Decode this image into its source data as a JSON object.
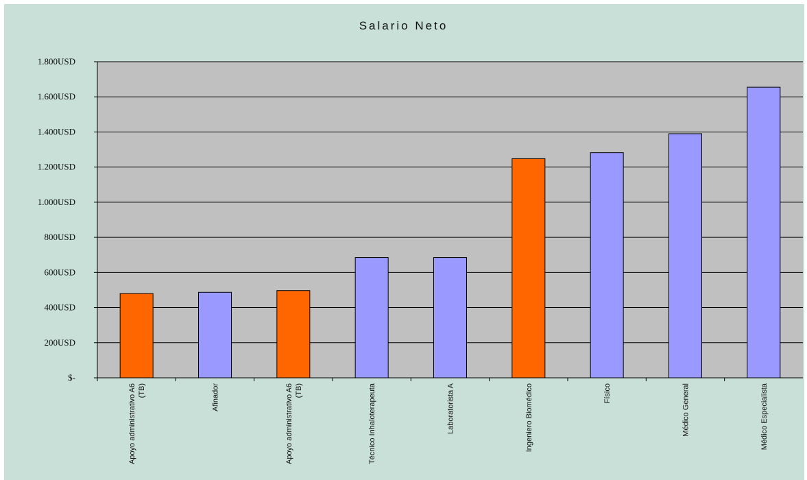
{
  "chart_data": {
    "type": "bar",
    "title": "Salario Neto",
    "xlabel": "",
    "ylabel": "",
    "ylim": [
      0,
      1800
    ],
    "y_ticks": [
      0,
      200,
      400,
      600,
      800,
      1000,
      1200,
      1400,
      1600,
      1800
    ],
    "y_tick_labels": [
      "$-",
      "200USD",
      "400USD",
      "600USD",
      "800USD",
      "1.000USD",
      "1.200USD",
      "1.400USD",
      "1.600USD",
      "1.800USD"
    ],
    "categories": [
      [
        "Apoyo administrativo A6",
        "(TB)"
      ],
      [
        "Afinador"
      ],
      [
        "Apoyo administrativo A6",
        "(TB)"
      ],
      [
        "Técnico Inhaloterapeuta"
      ],
      [
        "Laboratorista A"
      ],
      [
        "Ingeniero Biomédico"
      ],
      [
        "Físico"
      ],
      [
        "Médico General"
      ],
      [
        "Médico Especialista"
      ]
    ],
    "values": [
      480,
      487,
      497,
      685,
      685,
      1248,
      1282,
      1390,
      1655
    ],
    "bar_colors": [
      "#ff6600",
      "#9999ff",
      "#ff6600",
      "#9999ff",
      "#9999ff",
      "#ff6600",
      "#9999ff",
      "#9999ff",
      "#9999ff"
    ],
    "plot_background": "#c0c0c0",
    "chart_background": "#c8e0d8",
    "grid": true,
    "legend": "none"
  }
}
